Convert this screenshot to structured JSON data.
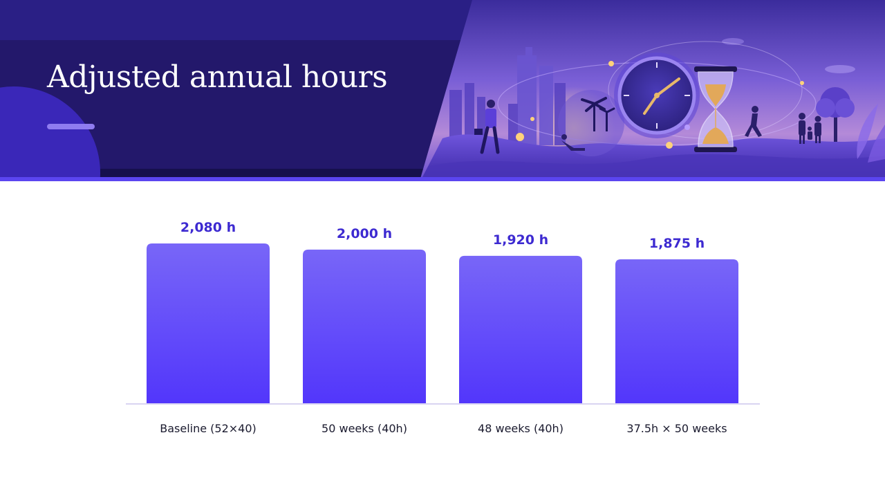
{
  "slide": {
    "title": "Adjusted annual hours",
    "colors": {
      "header_dark": "#23186b",
      "header_band": "#2a1f85",
      "accent_bar": "#5b45f0",
      "bar_top": "#7866f8",
      "bar_bottom": "#5236fb",
      "value_text": "#3d2ad1",
      "baseline": "#d9d4f2"
    },
    "illustration": {
      "description_icons": [
        "city-skyline-icon",
        "clock-icon",
        "hourglass-icon",
        "palm-tree-icon",
        "walking-person-icon",
        "family-icon"
      ]
    }
  },
  "chart_data": {
    "type": "bar",
    "title": "",
    "xlabel": "",
    "ylabel": "",
    "unit": "h",
    "categories": [
      "Baseline (52×40)",
      "50 weeks (40h)",
      "48 weeks (40h)",
      "37.5h × 50 weeks"
    ],
    "values": [
      2080,
      2000,
      1920,
      1875
    ],
    "value_labels": [
      "2,080 h",
      "2,000 h",
      "1,920 h",
      "1,875 h"
    ],
    "grid": false,
    "legend": "none"
  }
}
